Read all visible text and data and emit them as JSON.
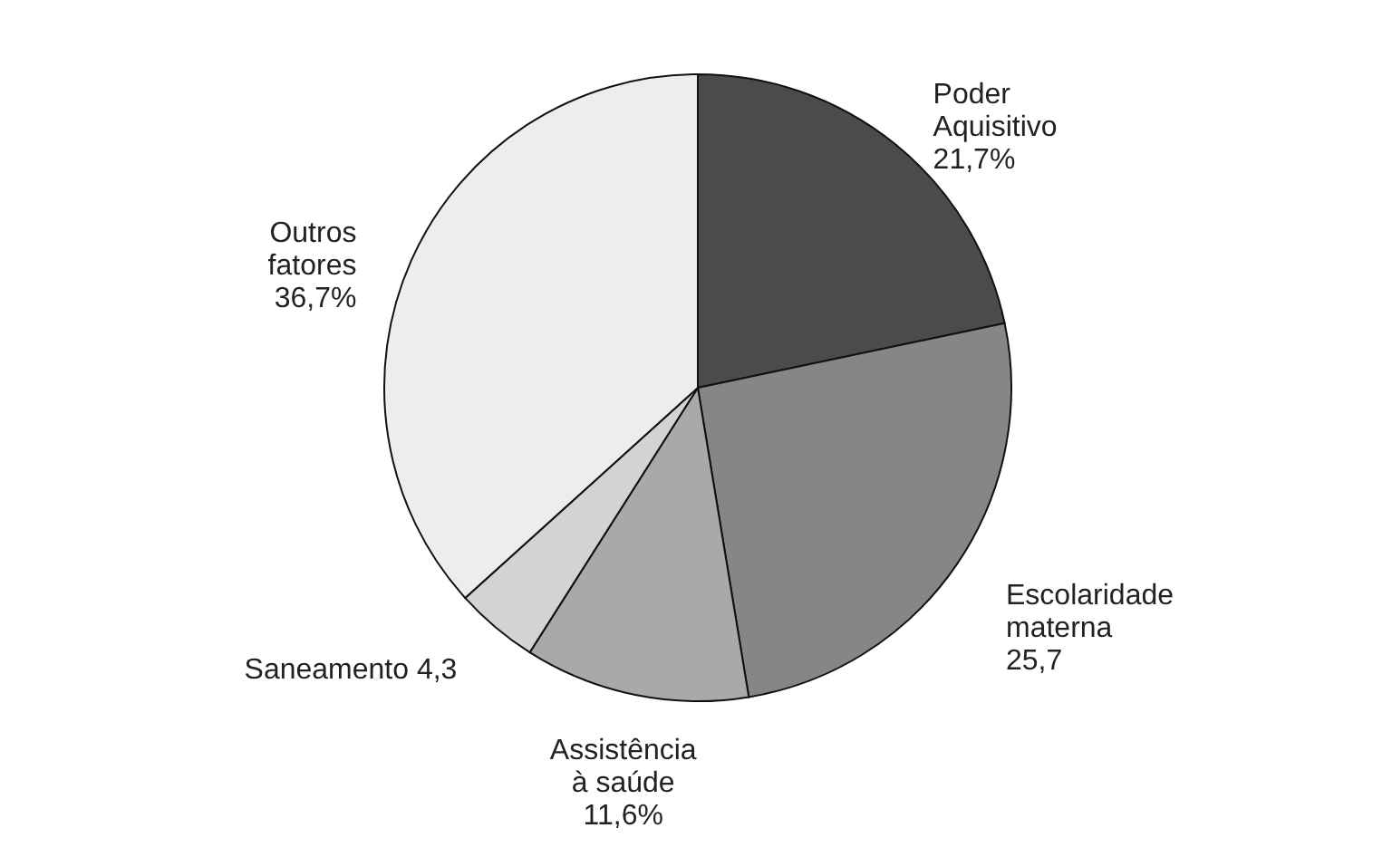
{
  "chart_data": {
    "type": "pie",
    "categories": [
      "Poder Aquisitivo",
      "Escolaridade materna",
      "Assistência à saúde",
      "Saneamento",
      "Outros fatores"
    ],
    "values": [
      21.7,
      25.7,
      11.6,
      4.3,
      36.7
    ],
    "value_labels": [
      "21,7%",
      "25,7",
      "11,6%",
      "4,3",
      "36,7%"
    ],
    "colors": [
      "#4a4b4d",
      "#858688",
      "#a8a9ab",
      "#d2d3d5",
      "#ededed"
    ]
  }
}
